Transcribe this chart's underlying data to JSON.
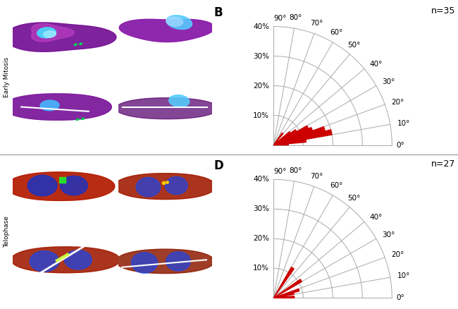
{
  "panel_B_label": "B",
  "panel_D_label": "D",
  "n_B": 35,
  "n_D": 27,
  "r_ticks": [
    10,
    20,
    30,
    40
  ],
  "theta_ticks_deg": [
    0,
    10,
    20,
    30,
    40,
    50,
    60,
    70,
    80,
    90
  ],
  "bar_color": "#cc0000",
  "grid_color": "#aaaaaa",
  "bg_color": "#ffffff",
  "panel_label_fontsize": 12,
  "n_fontsize": 9,
  "tick_fontsize": 7.5,
  "bins_B_start": [
    0,
    5,
    10,
    15,
    20,
    25,
    30,
    35,
    40,
    45,
    50,
    55,
    60,
    65,
    70,
    75,
    80,
    85
  ],
  "values_B": [
    5,
    11,
    20,
    18,
    14,
    13,
    9,
    7,
    0,
    0,
    5,
    0,
    0,
    0,
    0,
    0,
    0,
    0
  ],
  "bins_D_start": [
    0,
    5,
    10,
    15,
    20,
    25,
    30,
    35,
    40,
    45,
    50,
    55,
    60,
    65,
    70,
    75,
    80,
    85
  ],
  "values_D": [
    7,
    4,
    7,
    9,
    0,
    0,
    11,
    0,
    0,
    0,
    0,
    12,
    0,
    0,
    0,
    0,
    0,
    0
  ],
  "left_bg_top": "#000000",
  "left_bg_bot": "#000000",
  "side_label_top": "Early Mitosis",
  "side_label_bot": "Telophase"
}
